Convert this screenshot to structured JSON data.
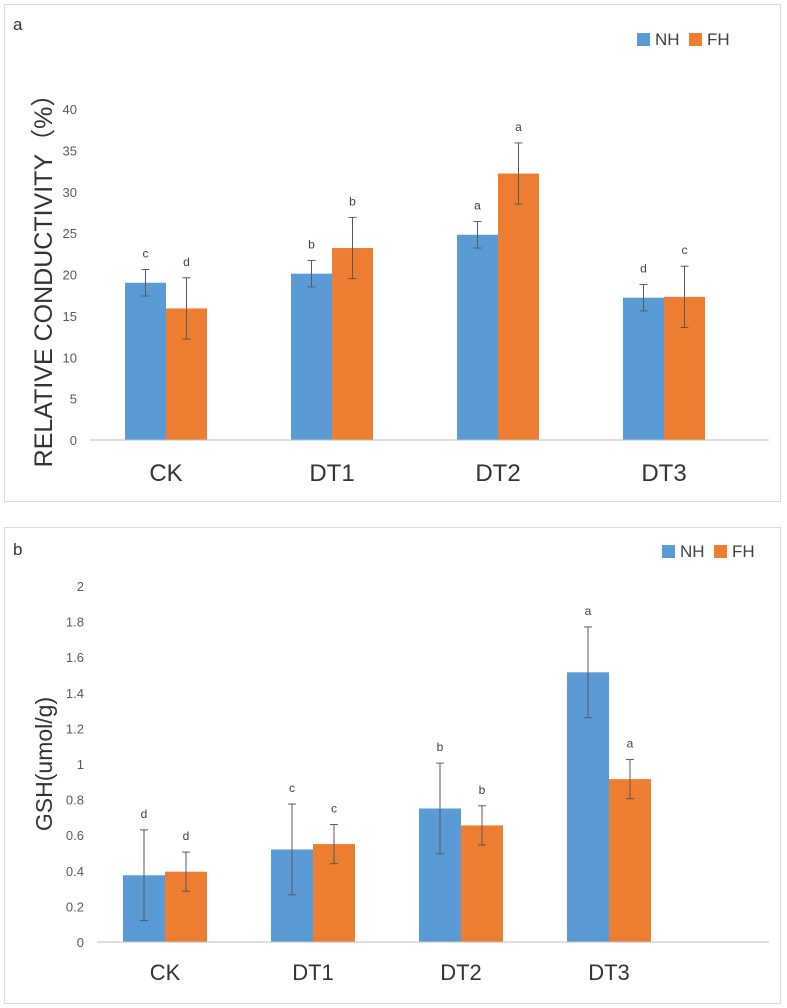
{
  "chart_data": [
    {
      "type": "bar",
      "panel_label": "a",
      "title": "",
      "xlabel": "",
      "ylabel": "RELATIVE CONDUCTIVITY（%）",
      "categories": [
        "CK",
        "DT1",
        "DT2",
        "DT3"
      ],
      "ylim": [
        0,
        40
      ],
      "yticks": [
        "0",
        "5",
        "10",
        "15",
        "20",
        "25",
        "30",
        "35",
        "40"
      ],
      "legend_position": "top-right",
      "series": [
        {
          "name": "NH",
          "color": "#5B9BD5",
          "values": [
            19,
            20.1,
            24.8,
            17.2
          ],
          "errors": [
            1.6,
            1.6,
            1.6,
            1.6
          ],
          "letters": [
            "c",
            "b",
            "a",
            "d"
          ]
        },
        {
          "name": "FH",
          "color": "#ED7D31",
          "values": [
            15.9,
            23.2,
            32.2,
            17.3
          ],
          "errors": [
            3.7,
            3.7,
            3.7,
            3.7
          ],
          "letters": [
            "d",
            "b",
            "a",
            "c"
          ]
        }
      ]
    },
    {
      "type": "bar",
      "panel_label": "b",
      "title": "",
      "xlabel": "",
      "ylabel": "GSH(umol/g)",
      "categories": [
        "CK",
        "DT1",
        "DT2",
        "DT3"
      ],
      "ylim": [
        0,
        2
      ],
      "yticks": [
        "0",
        "0.2",
        "0.4",
        "0.6",
        "0.8",
        "1",
        "1.2",
        "1.4",
        "1.6",
        "1.8",
        "2"
      ],
      "legend_position": "top-right",
      "series": [
        {
          "name": "NH",
          "color": "#5B9BD5",
          "values": [
            0.375,
            0.52,
            0.75,
            1.515
          ],
          "errors": [
            0.255,
            0.255,
            0.255,
            0.255
          ],
          "letters": [
            "d",
            "c",
            "b",
            "a"
          ]
        },
        {
          "name": "FH",
          "color": "#ED7D31",
          "values": [
            0.395,
            0.55,
            0.655,
            0.915
          ],
          "errors": [
            0.11,
            0.11,
            0.11,
            0.11
          ],
          "letters": [
            "d",
            "c",
            "b",
            "a"
          ]
        }
      ]
    }
  ]
}
